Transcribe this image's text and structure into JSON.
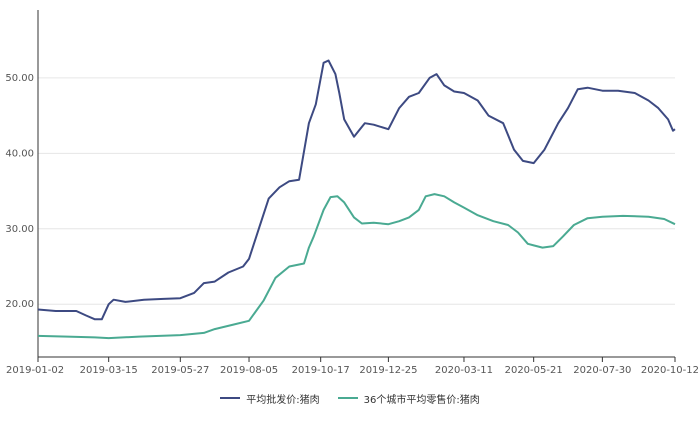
{
  "chart_data": {
    "type": "line",
    "title": "",
    "xlabel": "",
    "ylabel": "",
    "ylim": [
      13,
      59
    ],
    "yticks": [
      20,
      30,
      40,
      50
    ],
    "ytick_labels": [
      "20.00",
      "30.00",
      "40.00",
      "50.00"
    ],
    "xticks": [
      "2019-01-02",
      "2019-03-15",
      "2019-05-27",
      "2019-08-05",
      "2019-10-17",
      "2019-12-25",
      "2020-03-11",
      "2020-05-21",
      "2020-07-30",
      "2020-10-12"
    ],
    "grid": "horizontal",
    "legend_position": "bottom-center",
    "series": [
      {
        "name": "平均批发价:猪肉",
        "color": "#3d4a82",
        "points": [
          [
            "2019-01-02",
            19.3
          ],
          [
            "2019-01-20",
            19.1
          ],
          [
            "2019-02-10",
            19.1
          ],
          [
            "2019-02-20",
            18.5
          ],
          [
            "2019-03-01",
            18.0
          ],
          [
            "2019-03-08",
            18.0
          ],
          [
            "2019-03-15",
            20.0
          ],
          [
            "2019-03-20",
            20.6
          ],
          [
            "2019-04-01",
            20.3
          ],
          [
            "2019-04-20",
            20.6
          ],
          [
            "2019-05-10",
            20.7
          ],
          [
            "2019-05-27",
            20.8
          ],
          [
            "2019-06-10",
            21.5
          ],
          [
            "2019-06-20",
            22.8
          ],
          [
            "2019-07-01",
            23.0
          ],
          [
            "2019-07-15",
            24.2
          ],
          [
            "2019-07-30",
            25.0
          ],
          [
            "2019-08-05",
            26.0
          ],
          [
            "2019-08-15",
            30.0
          ],
          [
            "2019-08-25",
            34.0
          ],
          [
            "2019-09-05",
            35.5
          ],
          [
            "2019-09-15",
            36.3
          ],
          [
            "2019-09-25",
            36.5
          ],
          [
            "2019-10-05",
            44.0
          ],
          [
            "2019-10-12",
            46.5
          ],
          [
            "2019-10-20",
            52.0
          ],
          [
            "2019-10-25",
            52.3
          ],
          [
            "2019-11-01",
            50.5
          ],
          [
            "2019-11-05",
            48.0
          ],
          [
            "2019-11-10",
            44.5
          ],
          [
            "2019-11-20",
            42.2
          ],
          [
            "2019-12-01",
            44.0
          ],
          [
            "2019-12-10",
            43.8
          ],
          [
            "2019-12-25",
            43.2
          ],
          [
            "2020-01-05",
            46.0
          ],
          [
            "2020-01-15",
            47.5
          ],
          [
            "2020-01-25",
            48.0
          ],
          [
            "2020-02-05",
            50.0
          ],
          [
            "2020-02-12",
            50.5
          ],
          [
            "2020-02-20",
            49.0
          ],
          [
            "2020-03-01",
            48.2
          ],
          [
            "2020-03-11",
            48.0
          ],
          [
            "2020-03-25",
            47.0
          ],
          [
            "2020-04-05",
            45.0
          ],
          [
            "2020-04-20",
            44.0
          ],
          [
            "2020-05-01",
            40.5
          ],
          [
            "2020-05-10",
            39.0
          ],
          [
            "2020-05-21",
            38.7
          ],
          [
            "2020-06-01",
            40.5
          ],
          [
            "2020-06-15",
            44.0
          ],
          [
            "2020-06-25",
            46.0
          ],
          [
            "2020-07-05",
            48.5
          ],
          [
            "2020-07-15",
            48.7
          ],
          [
            "2020-07-30",
            48.3
          ],
          [
            "2020-08-15",
            48.3
          ],
          [
            "2020-09-01",
            48.0
          ],
          [
            "2020-09-15",
            47.0
          ],
          [
            "2020-09-25",
            46.0
          ],
          [
            "2020-10-05",
            44.5
          ],
          [
            "2020-10-10",
            43.0
          ],
          [
            "2020-10-12",
            43.2
          ]
        ]
      },
      {
        "name": "36个城市平均零售价:猪肉",
        "color": "#4aaa92",
        "points": [
          [
            "2019-01-02",
            15.8
          ],
          [
            "2019-02-01",
            15.7
          ],
          [
            "2019-03-01",
            15.6
          ],
          [
            "2019-03-15",
            15.5
          ],
          [
            "2019-04-15",
            15.7
          ],
          [
            "2019-05-27",
            15.9
          ],
          [
            "2019-06-20",
            16.2
          ],
          [
            "2019-07-01",
            16.7
          ],
          [
            "2019-07-20",
            17.3
          ],
          [
            "2019-08-05",
            17.8
          ],
          [
            "2019-08-20",
            20.5
          ],
          [
            "2019-09-01",
            23.5
          ],
          [
            "2019-09-15",
            25.0
          ],
          [
            "2019-09-30",
            25.4
          ],
          [
            "2019-10-05",
            27.5
          ],
          [
            "2019-10-10",
            29.0
          ],
          [
            "2019-10-20",
            32.5
          ],
          [
            "2019-10-27",
            34.2
          ],
          [
            "2019-11-03",
            34.3
          ],
          [
            "2019-11-10",
            33.5
          ],
          [
            "2019-11-20",
            31.5
          ],
          [
            "2019-11-28",
            30.7
          ],
          [
            "2019-12-10",
            30.8
          ],
          [
            "2019-12-25",
            30.6
          ],
          [
            "2020-01-05",
            31.0
          ],
          [
            "2020-01-15",
            31.5
          ],
          [
            "2020-01-25",
            32.5
          ],
          [
            "2020-02-01",
            34.3
          ],
          [
            "2020-02-10",
            34.6
          ],
          [
            "2020-02-20",
            34.3
          ],
          [
            "2020-03-01",
            33.5
          ],
          [
            "2020-03-11",
            32.8
          ],
          [
            "2020-03-25",
            31.8
          ],
          [
            "2020-04-10",
            31.0
          ],
          [
            "2020-04-25",
            30.5
          ],
          [
            "2020-05-05",
            29.5
          ],
          [
            "2020-05-15",
            28.0
          ],
          [
            "2020-05-21",
            27.8
          ],
          [
            "2020-05-30",
            27.5
          ],
          [
            "2020-06-10",
            27.7
          ],
          [
            "2020-06-20",
            29.0
          ],
          [
            "2020-07-01",
            30.5
          ],
          [
            "2020-07-15",
            31.4
          ],
          [
            "2020-07-30",
            31.6
          ],
          [
            "2020-08-20",
            31.7
          ],
          [
            "2020-09-15",
            31.6
          ],
          [
            "2020-10-01",
            31.3
          ],
          [
            "2020-10-12",
            30.6
          ]
        ]
      }
    ]
  }
}
